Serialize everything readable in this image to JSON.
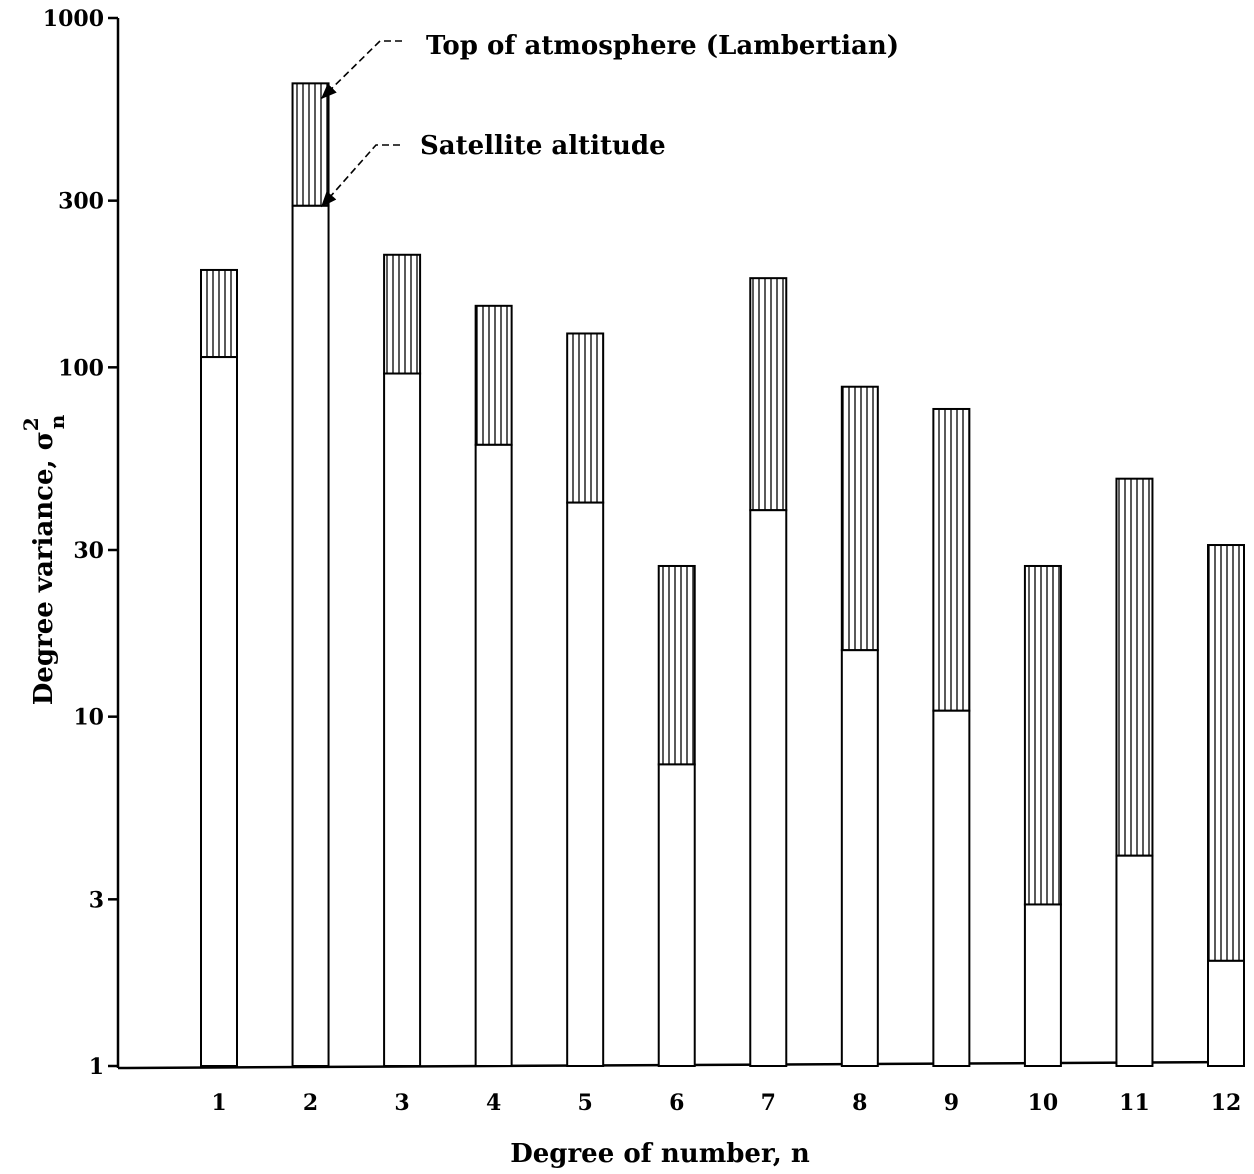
{
  "chart_data": {
    "type": "bar",
    "scale": "log",
    "ylim": [
      1,
      1000
    ],
    "yticks": [
      "1",
      "3",
      "10",
      "30",
      "100",
      "300",
      "1000"
    ],
    "ytick_values": [
      1,
      3,
      10,
      30,
      100,
      300,
      1000
    ],
    "xlabel": "Degree of number, n",
    "ylabel": "Degree variance, ",
    "ylabel_symbol": "σ",
    "ylabel_superscript": "2",
    "ylabel_subscript": "n",
    "categories": [
      "1",
      "2",
      "3",
      "4",
      "5",
      "6",
      "7",
      "8",
      "9",
      "10",
      "11",
      "12"
    ],
    "series": [
      {
        "name": "Top of atmosphere (Lambertian)",
        "values": [
          190,
          650,
          210,
          150,
          125,
          27,
          180,
          88,
          76,
          27,
          48,
          31
        ],
        "style": "vertical-hatch"
      },
      {
        "name": "Satellite altitude",
        "values": [
          107,
          290,
          96,
          60,
          41,
          7.3,
          39,
          15.5,
          10.4,
          2.9,
          4.0,
          2.0
        ],
        "style": "open"
      }
    ],
    "annotations": [
      {
        "text": "Top of atmosphere (Lambertian)",
        "points_to_category": "2",
        "series": "Top of atmosphere (Lambertian)"
      },
      {
        "text": "Satellite altitude",
        "points_to_category": "2",
        "series": "Satellite altitude"
      }
    ],
    "grid": false,
    "legend": "none"
  },
  "colors": {
    "ink": "#000000",
    "background": "#ffffff"
  }
}
